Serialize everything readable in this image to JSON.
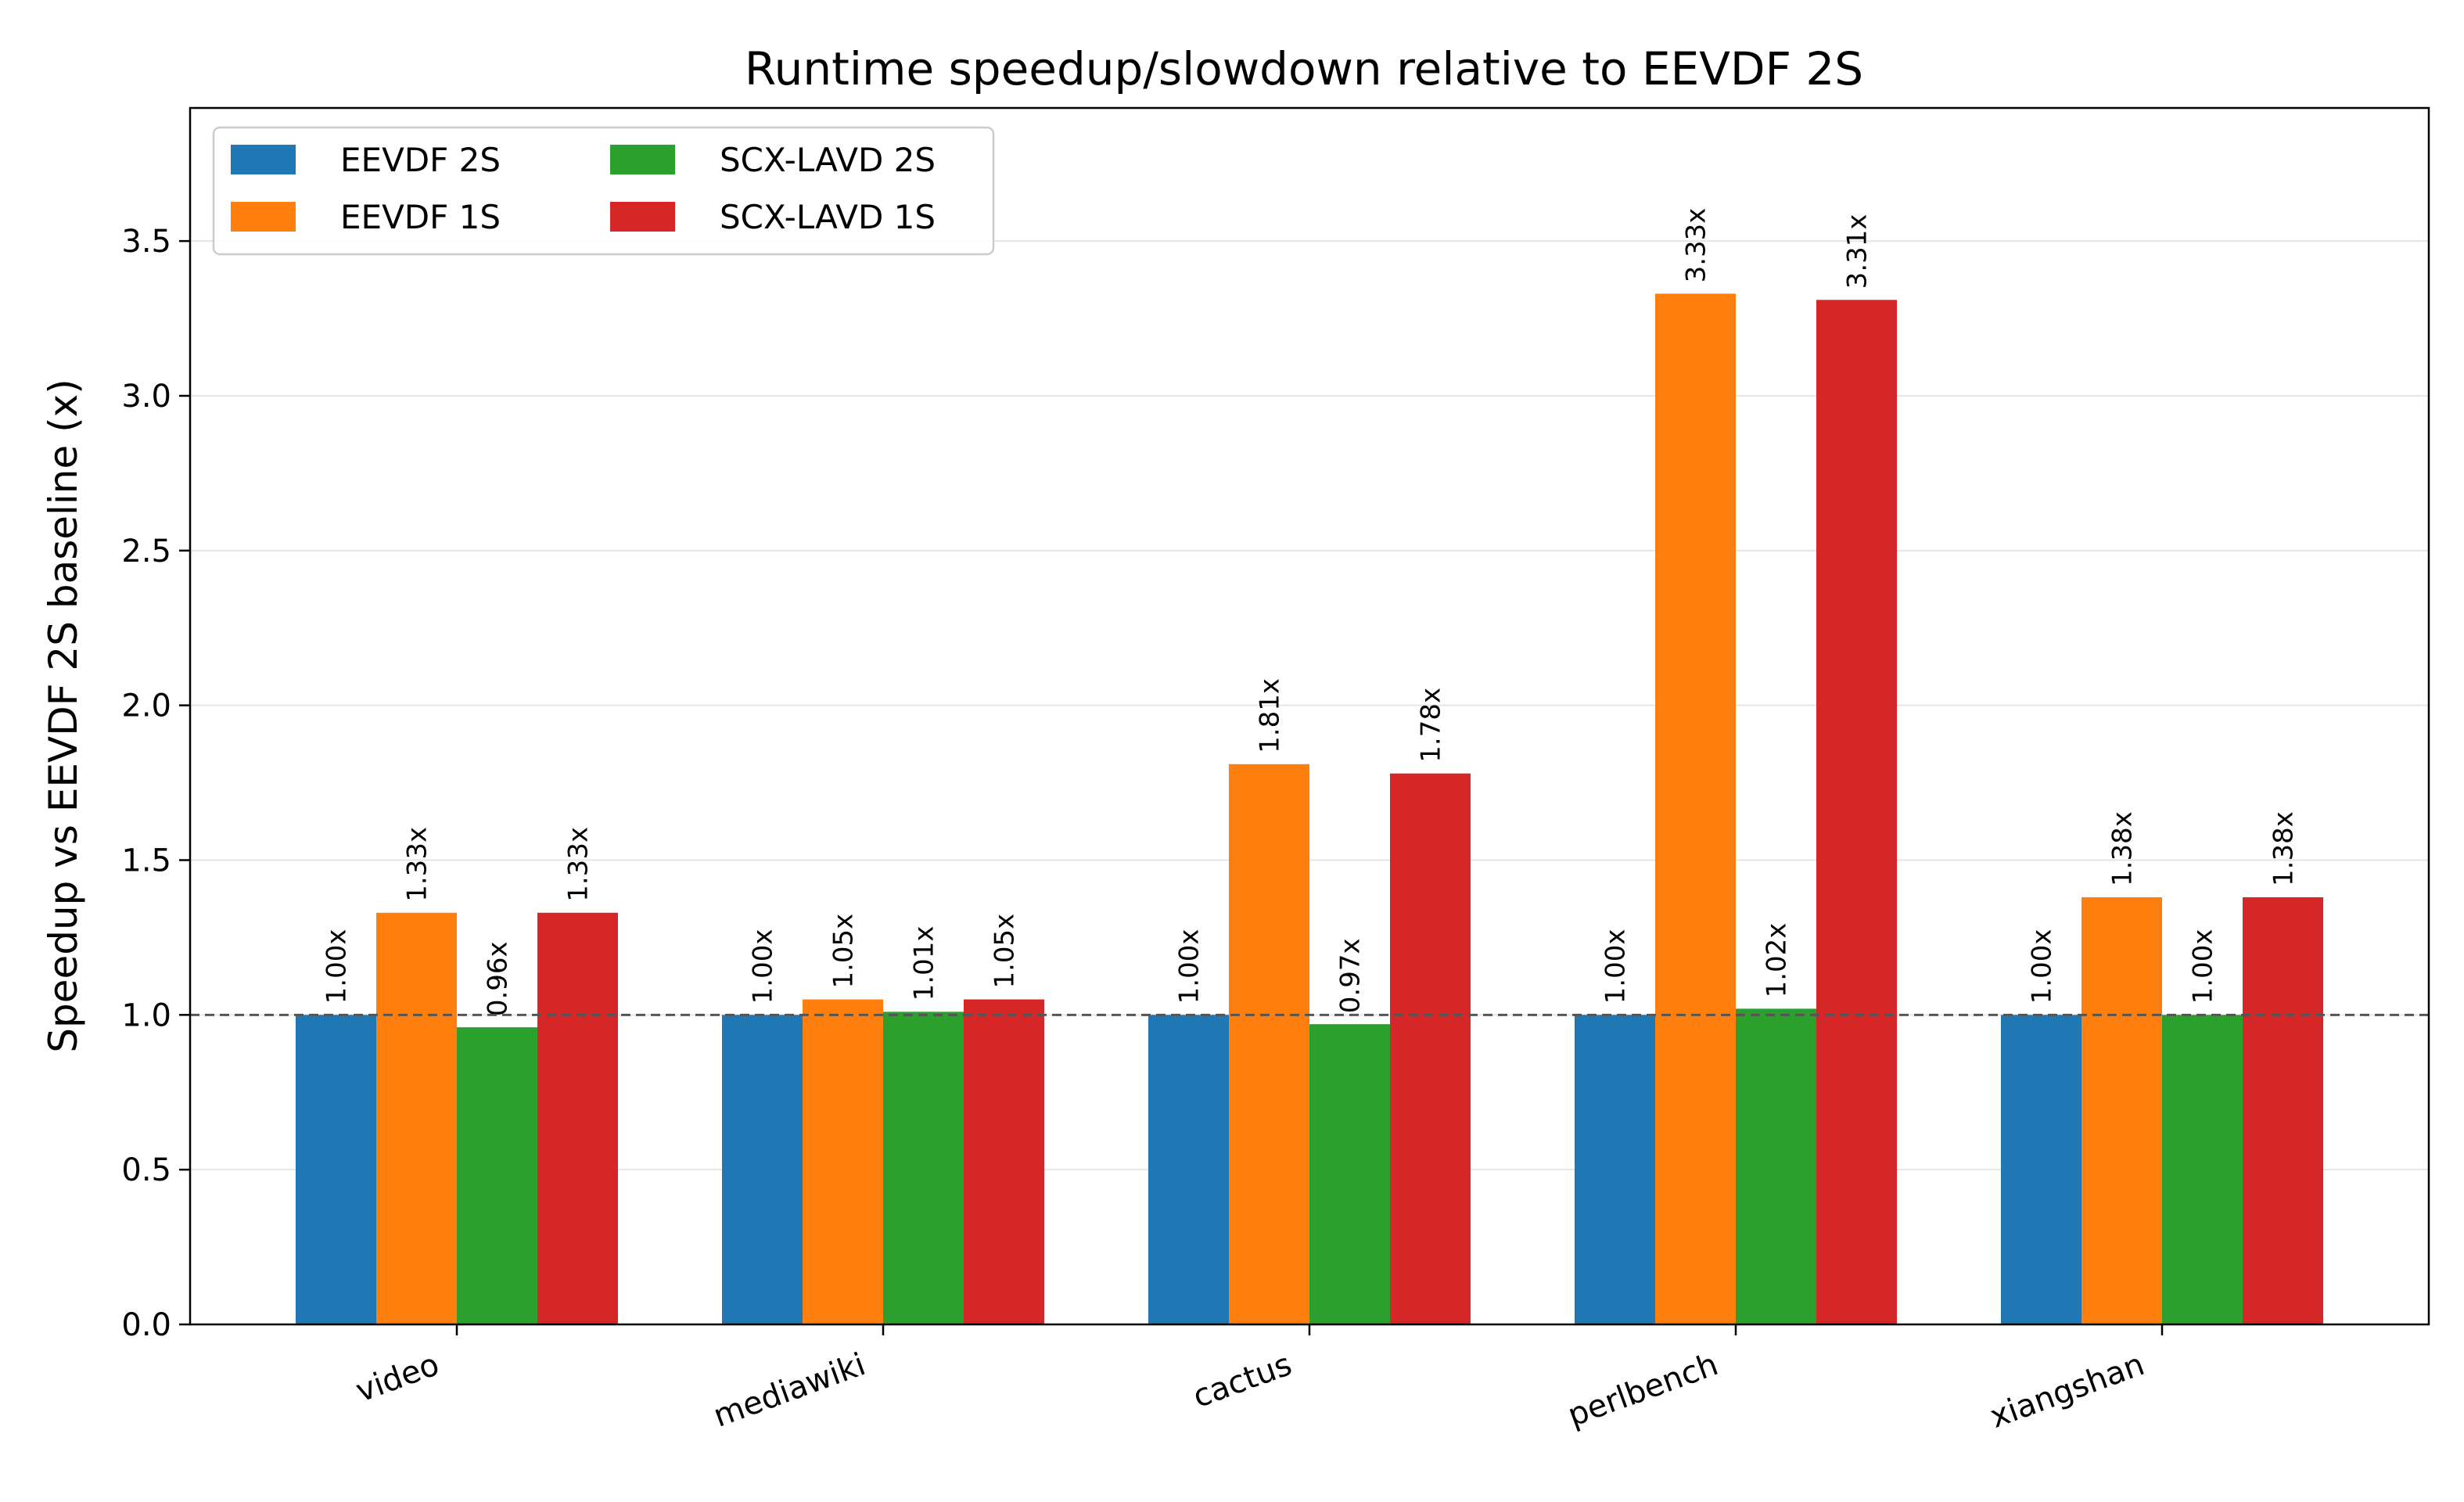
{
  "chart_data": {
    "type": "bar",
    "title": "Runtime speedup/slowdown relative to EEVDF 2S",
    "xlabel": "",
    "ylabel": "Speedup vs EEVDF 2S baseline (x)",
    "categories": [
      "video",
      "mediawiki",
      "cactus",
      "perlbench",
      "xiangshan"
    ],
    "ylim": [
      0,
      3.93
    ],
    "yticks": [
      0.0,
      0.5,
      1.0,
      1.5,
      2.0,
      2.5,
      3.0,
      3.5
    ],
    "ytick_labels": [
      "0.0",
      "0.5",
      "1.0",
      "1.5",
      "2.0",
      "2.5",
      "3.0",
      "3.5"
    ],
    "grid": "y",
    "legend_position": "top-left",
    "reference_line": 1.0,
    "series": [
      {
        "name": "EEVDF 2S",
        "color": "#1f77b4",
        "values": [
          1.0,
          1.0,
          1.0,
          1.0,
          1.0
        ],
        "labels": [
          "1.00x",
          "1.00x",
          "1.00x",
          "1.00x",
          "1.00x"
        ]
      },
      {
        "name": "EEVDF 1S",
        "color": "#ff7f0e",
        "values": [
          1.33,
          1.05,
          1.81,
          3.33,
          1.38
        ],
        "labels": [
          "1.33x",
          "1.05x",
          "1.81x",
          "3.33x",
          "1.38x"
        ]
      },
      {
        "name": "SCX-LAVD 2S",
        "color": "#2ca02c",
        "values": [
          0.96,
          1.01,
          0.97,
          1.02,
          1.0
        ],
        "labels": [
          "0.96x",
          "1.01x",
          "0.97x",
          "1.02x",
          "1.00x"
        ]
      },
      {
        "name": "SCX-LAVD 1S",
        "color": "#d62728",
        "values": [
          1.33,
          1.05,
          1.78,
          3.31,
          1.38
        ],
        "labels": [
          "1.33x",
          "1.05x",
          "1.78x",
          "3.31x",
          "1.38x"
        ]
      }
    ]
  }
}
